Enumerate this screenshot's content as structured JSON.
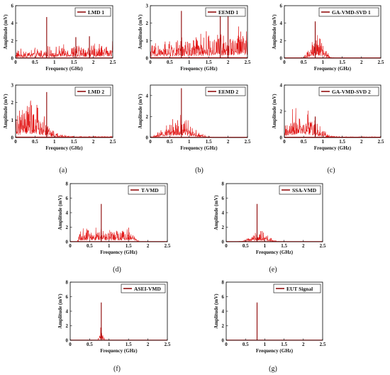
{
  "chart_data": [
    {
      "id": "lmd1",
      "type": "line",
      "legend": "LMD 1",
      "xlabel": "Frequency (GHz)",
      "ylabel": "Amplitude (mV)",
      "xlim": [
        0,
        2.5
      ],
      "ylim": [
        0,
        6
      ],
      "xticks": [
        "0",
        "0.5",
        "1",
        "1.5",
        "2",
        "2.5"
      ],
      "yticks": [
        "0",
        "2",
        "4",
        "6"
      ],
      "noise": {
        "shape": "rising",
        "base": 0.6,
        "amp": 0.6
      },
      "spikes": [
        [
          0.8,
          4.7
        ],
        [
          1.55,
          2.4
        ],
        [
          1.9,
          2.5
        ]
      ]
    },
    {
      "id": "eemd1",
      "type": "line",
      "legend": "EEMD 1",
      "xlabel": "Frequency (GHz)",
      "ylabel": "Amplitude (mV)",
      "xlim": [
        0,
        2.5
      ],
      "ylim": [
        0,
        3
      ],
      "xticks": [
        "0",
        "0.5",
        "1",
        "1.5",
        "2",
        "2.5"
      ],
      "yticks": [
        "0",
        "1",
        "2",
        "3"
      ],
      "noise": {
        "shape": "rising",
        "base": 0.5,
        "amp": 0.7
      },
      "spikes": [
        [
          0.8,
          2.7
        ],
        [
          1.8,
          2.6
        ],
        [
          2.0,
          2.4
        ]
      ]
    },
    {
      "id": "gavmd1",
      "type": "line",
      "legend": "GA-VMD-SVD 1",
      "xlabel": "Frequency (GHz)",
      "ylabel": "Amplitude (mV)",
      "xlim": [
        0,
        2.5
      ],
      "ylim": [
        0,
        6
      ],
      "xticks": [
        "0",
        "0.5",
        "1",
        "1.5",
        "2",
        "2.5"
      ],
      "yticks": [
        "0",
        "2",
        "4",
        "6"
      ],
      "noise": {
        "shape": "bump",
        "center": 0.85,
        "width": 0.22,
        "amp": 2.0
      },
      "spikes": [
        [
          0.8,
          4.2
        ]
      ]
    },
    {
      "id": "lmd2",
      "type": "line",
      "legend": "LMD 2",
      "xlabel": "Frequency (GHz)",
      "ylabel": "Amplitude (mV)",
      "xlim": [
        0,
        2.5
      ],
      "ylim": [
        0,
        3
      ],
      "xticks": [
        "0",
        "0.5",
        "1",
        "1.5",
        "2",
        "2.5"
      ],
      "yticks": [
        "0",
        "1",
        "2",
        "3"
      ],
      "noise": {
        "shape": "decay",
        "center": 0.35,
        "width": 0.5,
        "amp": 1.3
      },
      "spikes": [
        [
          0.8,
          2.6
        ]
      ]
    },
    {
      "id": "eemd2",
      "type": "line",
      "legend": "EEMD 2",
      "xlabel": "Frequency (GHz)",
      "ylabel": "Amplitude (mV)",
      "xlim": [
        0,
        2.5
      ],
      "ylim": [
        0,
        5
      ],
      "xticks": [
        "0",
        "0.5",
        "1",
        "1.5",
        "2",
        "2.5"
      ],
      "yticks": [
        "0",
        "2",
        "4"
      ],
      "noise": {
        "shape": "bump",
        "center": 0.75,
        "width": 0.45,
        "amp": 1.4
      },
      "spikes": [
        [
          0.8,
          4.7
        ]
      ]
    },
    {
      "id": "gavmd2",
      "type": "line",
      "legend": "GA-VMD-SVD 2",
      "xlabel": "Frequency (GHz)",
      "ylabel": "Amplitude (mV)",
      "xlim": [
        0,
        2.5
      ],
      "ylim": [
        0,
        4
      ],
      "xticks": [
        "0",
        "0.5",
        "1",
        "1.5",
        "2",
        "2.5"
      ],
      "yticks": [
        "0",
        "2",
        "4"
      ],
      "noise": {
        "shape": "decay",
        "center": 0.45,
        "width": 0.45,
        "amp": 1.6
      },
      "spikes": [
        [
          0.8,
          1.6
        ]
      ]
    },
    {
      "id": "tvmd",
      "type": "line",
      "legend": "T-VMD",
      "xlabel": "Frequency (GHz)",
      "ylabel": "Amplitude (mV)",
      "xlim": [
        0,
        2.5
      ],
      "ylim": [
        0,
        8
      ],
      "xticks": [
        "0",
        "0.5",
        "1",
        "1.5",
        "2",
        "2.5"
      ],
      "yticks": [
        "0",
        "2",
        "4",
        "6",
        "8"
      ],
      "noise": {
        "shape": "plateau",
        "start": 0.3,
        "end": 1.6,
        "amp": 1.2
      },
      "spikes": [
        [
          0.8,
          5.2
        ]
      ]
    },
    {
      "id": "ssavmd",
      "type": "line",
      "legend": "SSA-VMD",
      "xlabel": "Frequency (GHz)",
      "ylabel": "Amplitude (mV)",
      "xlim": [
        0,
        2.5
      ],
      "ylim": [
        0,
        8
      ],
      "xticks": [
        "0",
        "0.5",
        "1",
        "1.5",
        "2",
        "2.5"
      ],
      "yticks": [
        "0",
        "2",
        "4",
        "6",
        "8"
      ],
      "noise": {
        "shape": "bump",
        "center": 0.85,
        "width": 0.3,
        "amp": 1.0
      },
      "spikes": [
        [
          0.8,
          5.2
        ]
      ]
    },
    {
      "id": "aseivmd",
      "type": "line",
      "legend": "ASEI-VMD",
      "xlabel": "Frequency (GHz)",
      "ylabel": "Amplitude (mV)",
      "xlim": [
        0,
        2.5
      ],
      "ylim": [
        0,
        8
      ],
      "xticks": [
        "0",
        "0.5",
        "1",
        "1.5",
        "2",
        "2.5"
      ],
      "yticks": [
        "0",
        "2",
        "4",
        "6",
        "8"
      ],
      "noise": {
        "shape": "bump",
        "center": 0.8,
        "width": 0.06,
        "amp": 1.2
      },
      "spikes": [
        [
          0.8,
          5.2
        ]
      ]
    },
    {
      "id": "eut",
      "type": "line",
      "legend": "EUT Signal",
      "xlabel": "Frequency (GHz)",
      "ylabel": "Amplitude (mV)",
      "xlim": [
        0,
        2.5
      ],
      "ylim": [
        0,
        8
      ],
      "xticks": [
        "0",
        "0.5",
        "1",
        "1.5",
        "2",
        "2.5"
      ],
      "yticks": [
        "0",
        "2",
        "4",
        "6",
        "8"
      ],
      "noise": {
        "shape": "none"
      },
      "spikes": [
        [
          0.8,
          5.2
        ]
      ]
    }
  ],
  "captions": [
    "(a)",
    "(b)",
    "(c)",
    "(d)",
    "(e)",
    "(f)",
    "(g)"
  ],
  "colors": {
    "signal": "#e00000",
    "legend_line": "#8b0000",
    "axis": "#000000"
  }
}
